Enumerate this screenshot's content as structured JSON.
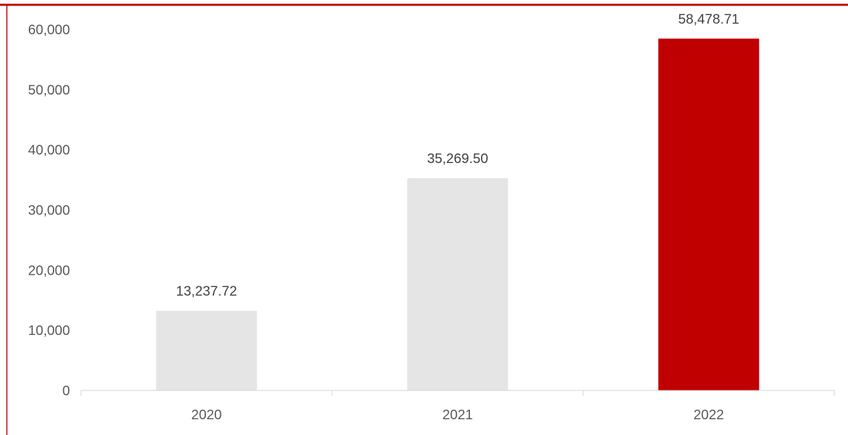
{
  "chart_data": {
    "type": "bar",
    "categories": [
      "2020",
      "2021",
      "2022"
    ],
    "values": [
      13237.72,
      35269.5,
      58478.71
    ],
    "data_labels": [
      "13,237.72",
      "35,269.50",
      "58,478.71"
    ],
    "y_ticks": [
      0,
      10000,
      20000,
      30000,
      40000,
      50000,
      60000
    ],
    "y_tick_labels": [
      "0",
      "10,000",
      "20,000",
      "30,000",
      "40,000",
      "50,000",
      "60,000"
    ],
    "ylim": [
      0,
      60000
    ],
    "title": "",
    "xlabel": "",
    "ylabel": "",
    "grid": false,
    "legend": "none"
  },
  "colors": {
    "bar_default": "#e5e5e5",
    "bar_highlight": "#c00000",
    "top_rule": "#c00000",
    "axis": "#d0d0d0"
  },
  "highlight_index": 2
}
